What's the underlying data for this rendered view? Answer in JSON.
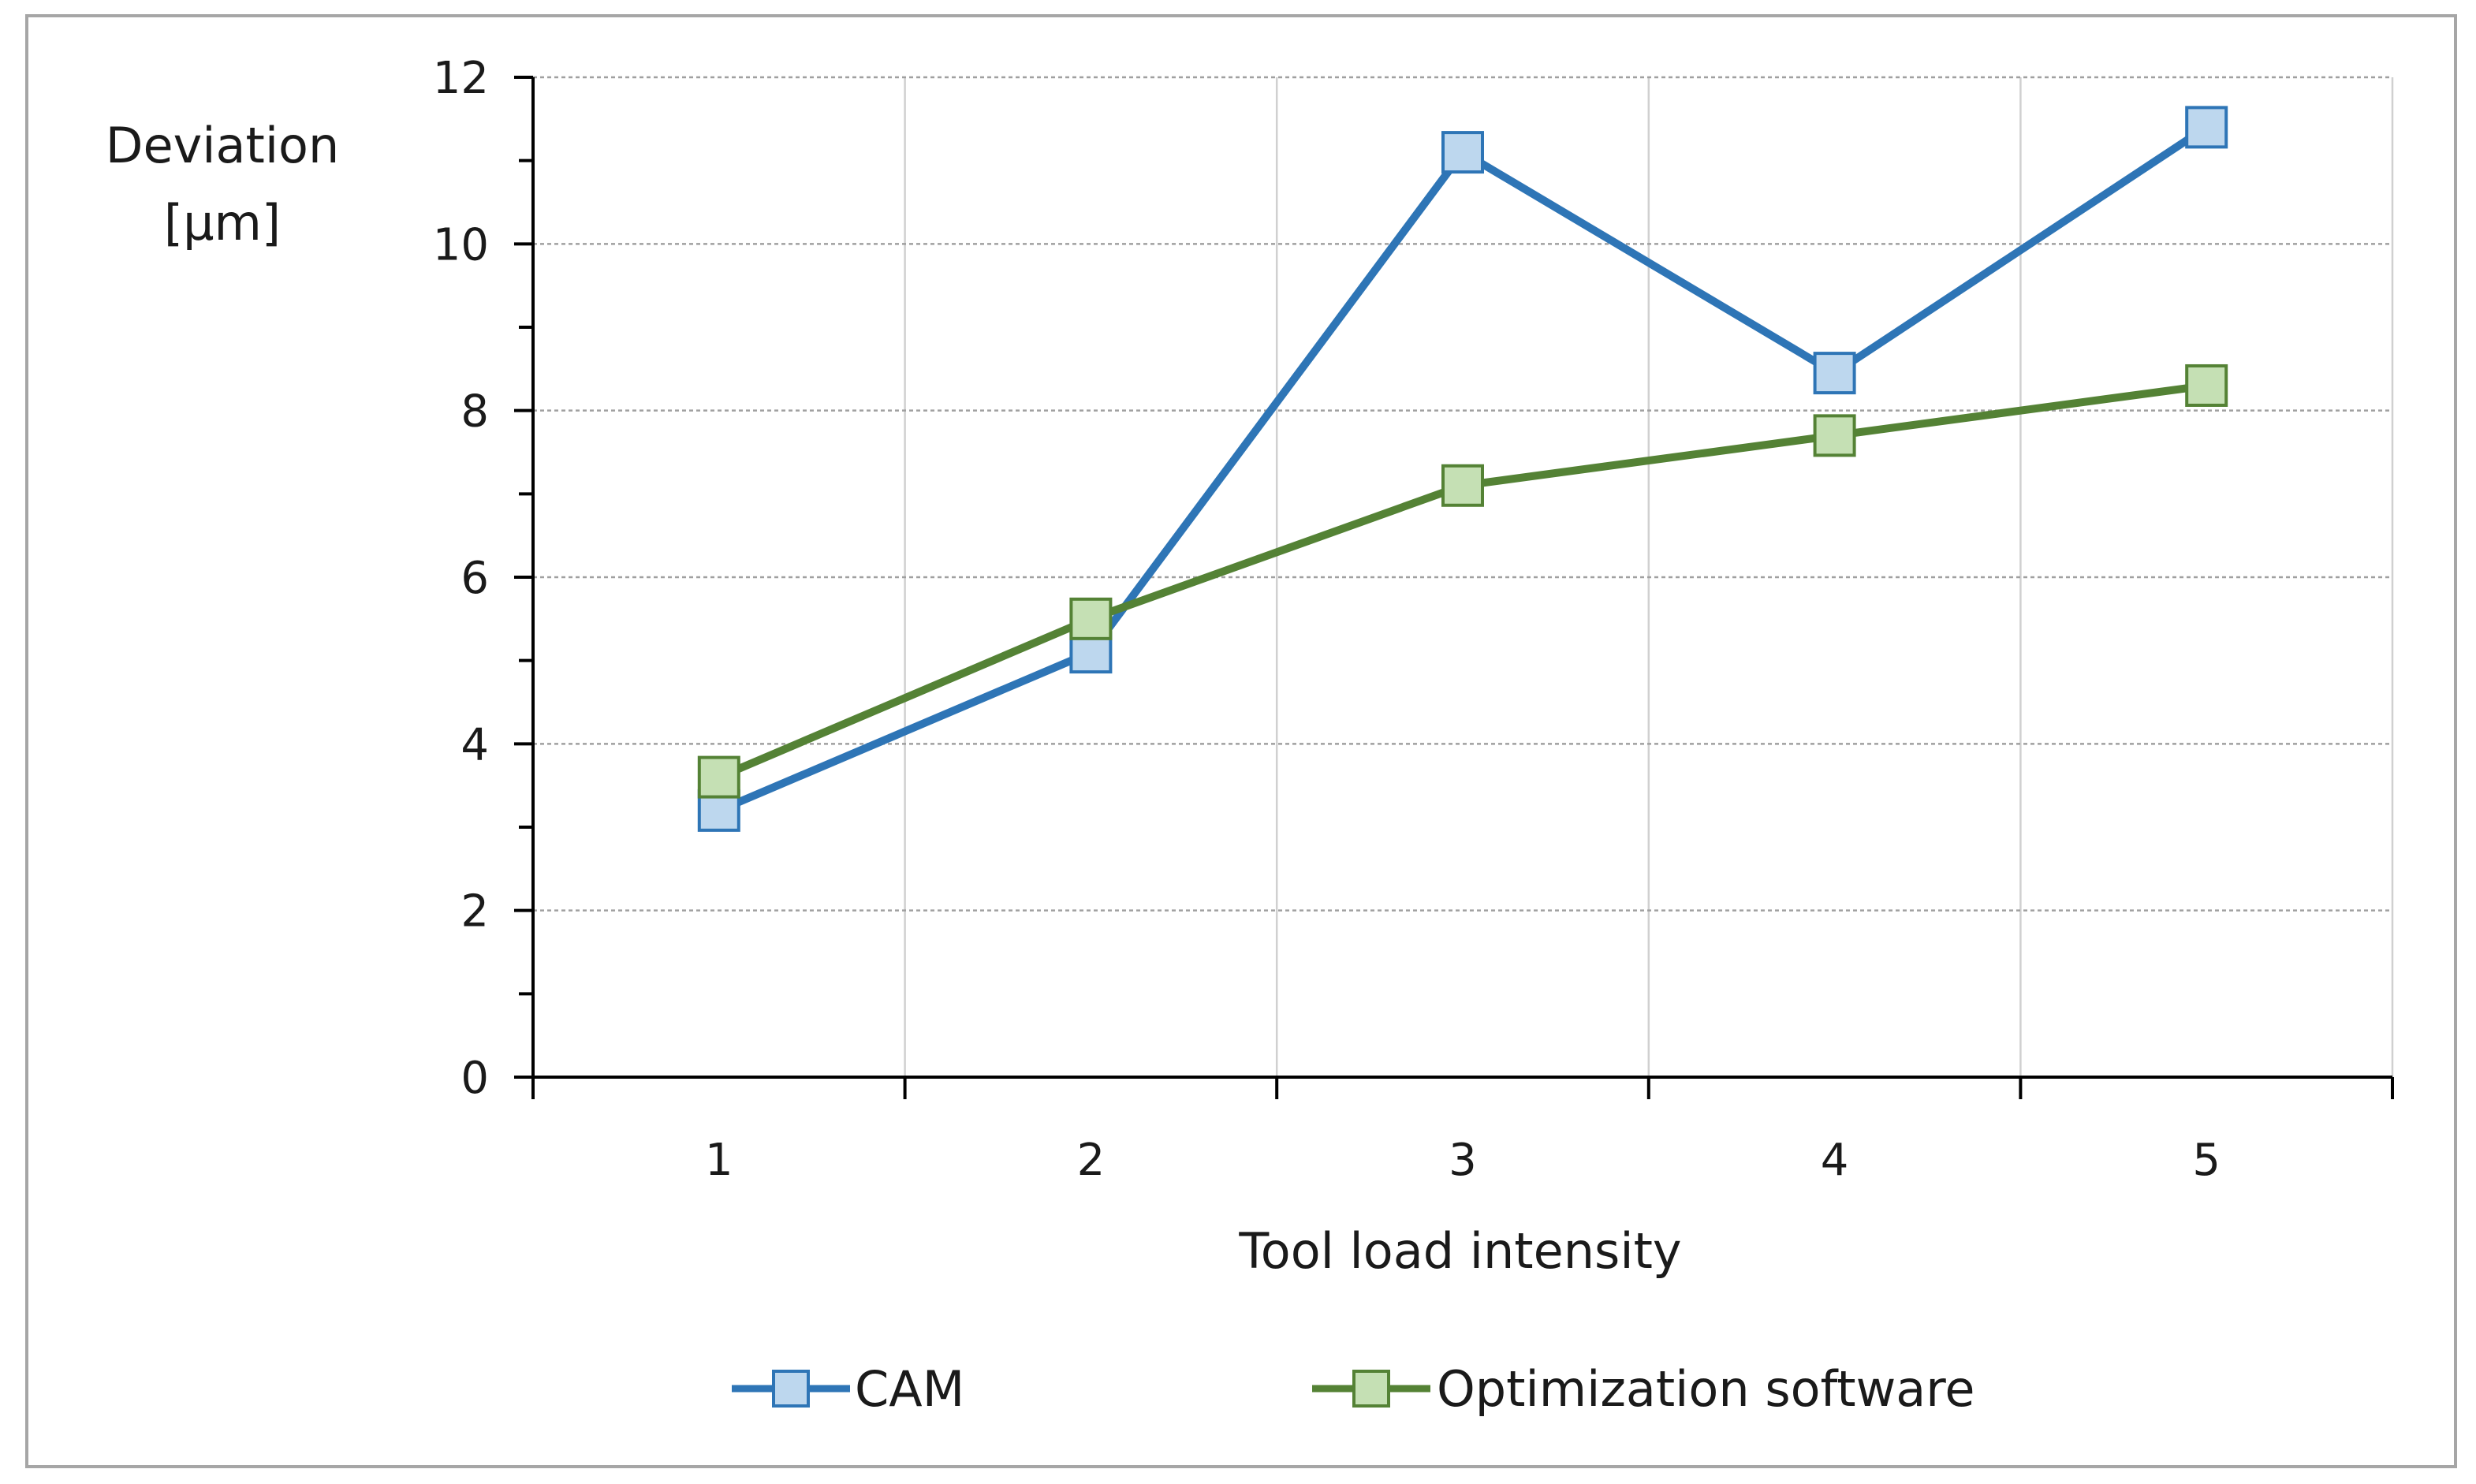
{
  "chart_data": {
    "type": "line",
    "title": "",
    "xlabel": "Tool load intensity",
    "ylabel_lines": [
      "Deviation",
      "[µm]"
    ],
    "x": [
      1,
      2,
      3,
      4,
      5
    ],
    "x_tick_labels": [
      "1",
      "2",
      "3",
      "4",
      "5"
    ],
    "ylim": [
      0,
      12
    ],
    "y_major_ticks": [
      0,
      2,
      4,
      6,
      8,
      10,
      12
    ],
    "y_minor_ticks": [
      1,
      3,
      5,
      7,
      9,
      11
    ],
    "y_tick_labels": [
      "0",
      "2",
      "4",
      "6",
      "8",
      "10",
      "12"
    ],
    "grid": true,
    "legend_position": "bottom",
    "series": [
      {
        "name": "CAM",
        "values": [
          3.2,
          5.1,
          11.1,
          8.45,
          11.4
        ],
        "line_color": "#2e75b6",
        "marker_fill": "#bdd7ee",
        "marker_stroke": "#2e75b6",
        "marker": "square"
      },
      {
        "name": "Optimization software",
        "values": [
          3.6,
          5.5,
          7.1,
          7.7,
          8.3
        ],
        "line_color": "#548235",
        "marker_fill": "#c5e0b4",
        "marker_stroke": "#548235",
        "marker": "square"
      }
    ]
  }
}
